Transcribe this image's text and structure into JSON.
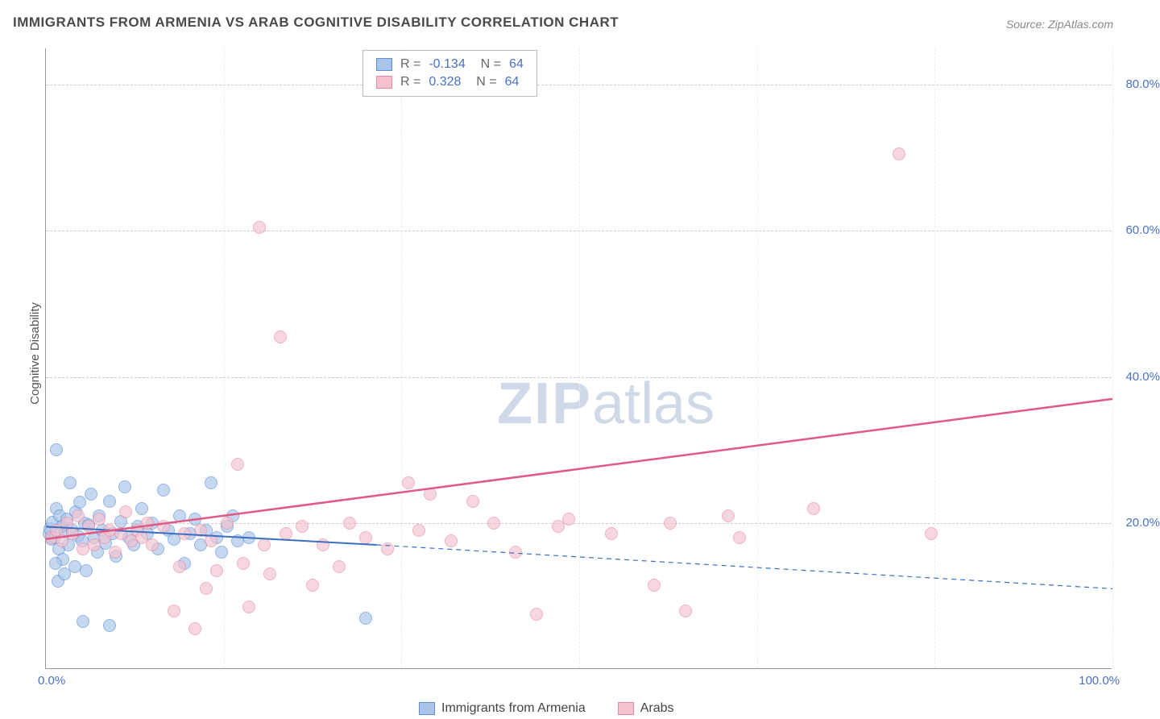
{
  "chart": {
    "type": "scatter",
    "title": "IMMIGRANTS FROM ARMENIA VS ARAB COGNITIVE DISABILITY CORRELATION CHART",
    "source": "Source: ZipAtlas.com",
    "ylabel": "Cognitive Disability",
    "xlim": [
      0,
      100
    ],
    "ylim": [
      0,
      85
    ],
    "yticks": [
      20,
      40,
      60,
      80
    ],
    "ytick_labels": [
      "20.0%",
      "40.0%",
      "60.0%",
      "80.0%"
    ],
    "xticks_minor": [
      0,
      16.67,
      33.33,
      50,
      66.67,
      83.33,
      100
    ],
    "xtick_left": "0.0%",
    "xtick_right": "100.0%",
    "grid_color": "#cccccc",
    "background_color": "#ffffff",
    "watermark": "ZIPatlas",
    "series": [
      {
        "name": "Immigrants from Armenia",
        "fill": "#a9c4e8",
        "stroke": "#5b8fd6",
        "opacity": 0.65,
        "marker_radius": 8,
        "R": "-0.134",
        "N": "64",
        "trend": {
          "x1": 0,
          "y1": 19.5,
          "x2": 31,
          "y2": 17.0,
          "ext_x2": 100,
          "ext_y2": 11.0,
          "color": "#3b6fc0",
          "width": 2
        },
        "points": [
          [
            0.3,
            18.5
          ],
          [
            0.4,
            19.2
          ],
          [
            0.5,
            17.8
          ],
          [
            0.6,
            20.1
          ],
          [
            0.8,
            18.0
          ],
          [
            1.0,
            30.0
          ],
          [
            1.0,
            22.0
          ],
          [
            1.2,
            16.5
          ],
          [
            1.3,
            21.0
          ],
          [
            1.5,
            19.5
          ],
          [
            1.6,
            15.0
          ],
          [
            1.8,
            18.8
          ],
          [
            2.0,
            20.5
          ],
          [
            2.1,
            17.0
          ],
          [
            2.3,
            25.5
          ],
          [
            2.5,
            19.0
          ],
          [
            2.7,
            14.0
          ],
          [
            2.8,
            21.5
          ],
          [
            3.0,
            18.2
          ],
          [
            3.2,
            22.8
          ],
          [
            3.4,
            17.5
          ],
          [
            3.6,
            20.0
          ],
          [
            3.8,
            13.5
          ],
          [
            4.0,
            19.8
          ],
          [
            4.2,
            24.0
          ],
          [
            4.5,
            18.0
          ],
          [
            4.8,
            16.0
          ],
          [
            5.0,
            21.0
          ],
          [
            5.3,
            19.0
          ],
          [
            5.6,
            17.2
          ],
          [
            6.0,
            23.0
          ],
          [
            6.3,
            18.5
          ],
          [
            6.6,
            15.5
          ],
          [
            7.0,
            20.2
          ],
          [
            7.4,
            25.0
          ],
          [
            7.8,
            18.0
          ],
          [
            8.2,
            17.0
          ],
          [
            8.6,
            19.5
          ],
          [
            9.0,
            22.0
          ],
          [
            9.5,
            18.5
          ],
          [
            10.0,
            20.0
          ],
          [
            10.5,
            16.5
          ],
          [
            11.0,
            24.5
          ],
          [
            11.5,
            19.0
          ],
          [
            12.0,
            17.8
          ],
          [
            12.5,
            21.0
          ],
          [
            13.0,
            14.5
          ],
          [
            13.5,
            18.5
          ],
          [
            14.0,
            20.5
          ],
          [
            14.5,
            17.0
          ],
          [
            15.0,
            19.0
          ],
          [
            15.5,
            25.5
          ],
          [
            16.0,
            18.0
          ],
          [
            16.5,
            16.0
          ],
          [
            17.0,
            19.5
          ],
          [
            17.5,
            21.0
          ],
          [
            18.0,
            17.5
          ],
          [
            19.0,
            18.0
          ],
          [
            3.5,
            6.5
          ],
          [
            6.0,
            6.0
          ],
          [
            30.0,
            7.0
          ],
          [
            1.1,
            12.0
          ],
          [
            0.9,
            14.5
          ],
          [
            1.7,
            13.0
          ]
        ]
      },
      {
        "name": "Arabs",
        "fill": "#f4c2cf",
        "stroke": "#e88aa3",
        "opacity": 0.65,
        "marker_radius": 8,
        "R": "0.328",
        "N": "64",
        "trend": {
          "x1": 0,
          "y1": 17.8,
          "x2": 100,
          "y2": 37.0,
          "color": "#e05a85",
          "width": 2.5
        },
        "points": [
          [
            0.5,
            18.0
          ],
          [
            1.0,
            19.0
          ],
          [
            1.5,
            17.5
          ],
          [
            2.0,
            20.0
          ],
          [
            2.5,
            18.5
          ],
          [
            3.0,
            21.0
          ],
          [
            3.5,
            16.5
          ],
          [
            4.0,
            19.5
          ],
          [
            4.5,
            17.0
          ],
          [
            5.0,
            20.5
          ],
          [
            5.5,
            18.0
          ],
          [
            6.0,
            19.0
          ],
          [
            6.5,
            16.0
          ],
          [
            7.0,
            18.5
          ],
          [
            7.5,
            21.5
          ],
          [
            8.0,
            17.5
          ],
          [
            8.5,
            19.0
          ],
          [
            9.0,
            18.0
          ],
          [
            9.5,
            20.0
          ],
          [
            10.0,
            17.0
          ],
          [
            11.0,
            19.5
          ],
          [
            12.0,
            8.0
          ],
          [
            12.5,
            14.0
          ],
          [
            13.0,
            18.5
          ],
          [
            14.0,
            5.5
          ],
          [
            14.5,
            19.0
          ],
          [
            15.0,
            11.0
          ],
          [
            15.5,
            17.5
          ],
          [
            16.0,
            13.5
          ],
          [
            17.0,
            20.0
          ],
          [
            18.0,
            28.0
          ],
          [
            18.5,
            14.5
          ],
          [
            19.0,
            8.5
          ],
          [
            20.0,
            60.5
          ],
          [
            20.5,
            17.0
          ],
          [
            21.0,
            13.0
          ],
          [
            22.0,
            45.5
          ],
          [
            22.5,
            18.5
          ],
          [
            24.0,
            19.5
          ],
          [
            25.0,
            11.5
          ],
          [
            26.0,
            17.0
          ],
          [
            27.5,
            14.0
          ],
          [
            28.5,
            20.0
          ],
          [
            30.0,
            18.0
          ],
          [
            32.0,
            16.5
          ],
          [
            34.0,
            25.5
          ],
          [
            35.0,
            19.0
          ],
          [
            36.0,
            24.0
          ],
          [
            38.0,
            17.5
          ],
          [
            40.0,
            23.0
          ],
          [
            42.0,
            20.0
          ],
          [
            44.0,
            16.0
          ],
          [
            46.0,
            7.5
          ],
          [
            48.0,
            19.5
          ],
          [
            49.0,
            20.5
          ],
          [
            53.0,
            18.5
          ],
          [
            57.0,
            11.5
          ],
          [
            58.5,
            20.0
          ],
          [
            60.0,
            8.0
          ],
          [
            64.0,
            21.0
          ],
          [
            65.0,
            18.0
          ],
          [
            72.0,
            22.0
          ],
          [
            80.0,
            70.5
          ],
          [
            83.0,
            18.5
          ]
        ]
      }
    ],
    "legend_bottom": [
      {
        "label": "Immigrants from Armenia",
        "fill": "#a9c4e8",
        "stroke": "#5b8fd6"
      },
      {
        "label": "Arabs",
        "fill": "#f4c2cf",
        "stroke": "#e88aa3"
      }
    ]
  }
}
